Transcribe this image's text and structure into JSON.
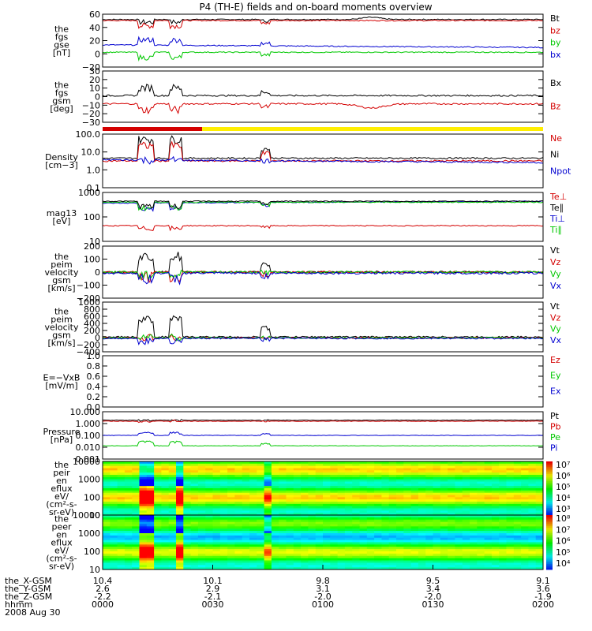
{
  "title": "P4 (TH-E) fields and on-board moments overview",
  "colors": {
    "black": "#000000",
    "red": "#d40000",
    "green": "#00c800",
    "blue": "#0000d0",
    "yellow": "#ffee00"
  },
  "xaxis": {
    "rows": [
      {
        "label": "the_X-GSM",
        "values": [
          "10.4",
          "10.1",
          "9.8",
          "9.5",
          "9.1"
        ]
      },
      {
        "label": "the_Y-GSM",
        "values": [
          "2.6",
          "2.9",
          "3.1",
          "3.4",
          "3.6"
        ]
      },
      {
        "label": "the_Z-GSM",
        "values": [
          "-2.2",
          "-2.1",
          "-2.0",
          "-2.0",
          "-1.9"
        ]
      },
      {
        "label": "hhmm",
        "values": [
          "0000",
          "0030",
          "0100",
          "0130",
          "0200"
        ]
      }
    ],
    "date": "2008 Aug 30"
  },
  "chart_data": [
    {
      "type": "line",
      "ylabel": [
        "the",
        "fgs",
        "gse",
        "[nT]"
      ],
      "yticks": [
        "60",
        "40",
        "20",
        "0",
        "−20"
      ],
      "ylim": [
        -20,
        60
      ],
      "series": [
        {
          "name": "Bt"
        },
        {
          "name": "bz"
        },
        {
          "name": "by"
        },
        {
          "name": "bx"
        }
      ]
    },
    {
      "type": "line",
      "ylabel": [
        "the",
        "fgs",
        "gsm",
        "[deg]"
      ],
      "yticks": [
        "30",
        "20",
        "10",
        "0",
        "−10",
        "−20",
        "−30"
      ],
      "ylim": [
        -30,
        30
      ],
      "series": [
        {
          "name": "Bx"
        },
        {
          "name": "Bz"
        }
      ]
    },
    {
      "type": "line",
      "ylabel": [
        "Density",
        "[cm−3]"
      ],
      "yticks": [
        "100.0",
        "10.0",
        "1.0",
        "0.1"
      ],
      "ylim": [
        0.1,
        100
      ],
      "log": true,
      "series": [
        {
          "name": "Ne"
        },
        {
          "name": "Ni"
        },
        {
          "name": "Npot"
        }
      ]
    },
    {
      "type": "line",
      "ylabel": [
        "mag13",
        "[eV]"
      ],
      "yticks": [
        "1000",
        "100",
        "10"
      ],
      "ylim": [
        10,
        10000
      ],
      "log": true,
      "series": [
        {
          "name": "Te⊥"
        },
        {
          "name": "Te∥"
        },
        {
          "name": "Ti⊥"
        },
        {
          "name": "Ti∥"
        }
      ]
    },
    {
      "type": "line",
      "ylabel": [
        "the",
        "peim",
        "velocity",
        "gsm",
        "[km/s]"
      ],
      "yticks": [
        "200",
        "100",
        "0",
        "−100",
        "−200"
      ],
      "ylim": [
        -200,
        200
      ],
      "series": [
        {
          "name": "Vt"
        },
        {
          "name": "Vz"
        },
        {
          "name": "Vy"
        },
        {
          "name": "Vx"
        }
      ]
    },
    {
      "type": "line",
      "ylabel": [
        "the",
        "peim",
        "velocity",
        "gsm",
        "[km/s]"
      ],
      "yticks": [
        "1000",
        "800",
        "600",
        "400",
        "200",
        "0",
        "−200",
        "−400"
      ],
      "ylim": [
        -400,
        1000
      ],
      "series": [
        {
          "name": "Vt"
        },
        {
          "name": "Vz"
        },
        {
          "name": "Vy"
        },
        {
          "name": "Vx"
        }
      ]
    },
    {
      "type": "line",
      "ylabel": [
        "E=−VxB",
        "[mV/m]"
      ],
      "yticks": [
        "1.0",
        "0.8",
        "0.6",
        "0.4",
        "0.2",
        "0.0"
      ],
      "ylim": [
        0,
        1
      ],
      "series": [
        {
          "name": "Ez"
        },
        {
          "name": "Ey"
        },
        {
          "name": "Ex"
        }
      ]
    },
    {
      "type": "line",
      "ylabel": [
        "Pressure",
        "[nPa]"
      ],
      "yticks": [
        "10.000",
        "1.000",
        "0.100",
        "0.010",
        "0.001"
      ],
      "ylim": [
        0.001,
        10
      ],
      "log": true,
      "series": [
        {
          "name": "Pt"
        },
        {
          "name": "Pb"
        },
        {
          "name": "Pe"
        },
        {
          "name": "Pi"
        }
      ]
    },
    {
      "type": "heatmap",
      "ylabel": [
        "the",
        "peir",
        "en",
        "eflux",
        "eV/",
        "(cm²-s-",
        "sr-eV)"
      ],
      "yticks": [
        "10000",
        "1000",
        "100",
        "10"
      ],
      "colorbar": [
        "10⁷",
        "10⁶",
        "10⁵",
        "10⁴",
        "10³"
      ]
    },
    {
      "type": "heatmap",
      "ylabel": [
        "the",
        "peer",
        "en",
        "eflux",
        "eV/",
        "(cm²-s-",
        "sr-eV)"
      ],
      "yticks": [
        "10000",
        "1000",
        "100",
        "10"
      ],
      "colorbar": [
        "10⁸",
        "10⁷",
        "10⁶",
        "10⁵",
        "10⁴"
      ]
    }
  ]
}
